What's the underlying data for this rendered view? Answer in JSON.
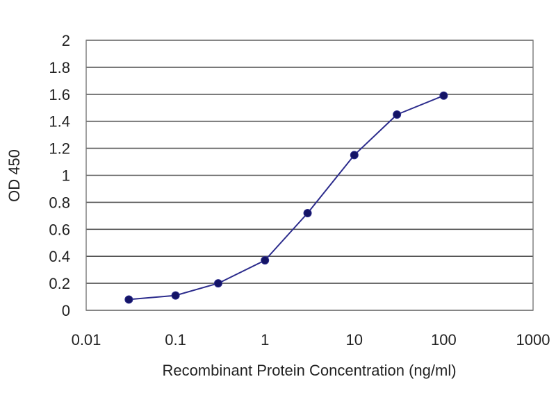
{
  "chart_data": {
    "type": "line",
    "x_scale": "log",
    "xlabel": "Recombinant Protein Concentration (ng/ml)",
    "ylabel": "OD 450",
    "xlim": [
      0.01,
      1000
    ],
    "ylim": [
      0,
      2
    ],
    "x_ticks": [
      0.01,
      0.1,
      1,
      10,
      100,
      1000
    ],
    "x_tick_labels": [
      "0.01",
      "0.1",
      "1",
      "10",
      "100",
      "1000"
    ],
    "y_ticks": [
      0,
      0.2,
      0.4,
      0.6,
      0.8,
      1,
      1.2,
      1.4,
      1.6,
      1.8,
      2
    ],
    "y_tick_labels": [
      "0",
      "0.2",
      "0.4",
      "0.6",
      "0.8",
      "1",
      "1.2",
      "1.4",
      "1.6",
      "1.8",
      "2"
    ],
    "grid": "horizontal",
    "legend": "none",
    "series": [
      {
        "x": [
          0.03,
          0.1,
          0.3,
          1,
          3,
          10,
          30,
          100
        ],
        "y": [
          0.08,
          0.11,
          0.2,
          0.37,
          0.72,
          1.15,
          1.45,
          1.59
        ]
      }
    ],
    "colors": {
      "line": "#2b2b8c",
      "marker": "#141466",
      "grid": "#555555",
      "frame": "#777777"
    }
  }
}
